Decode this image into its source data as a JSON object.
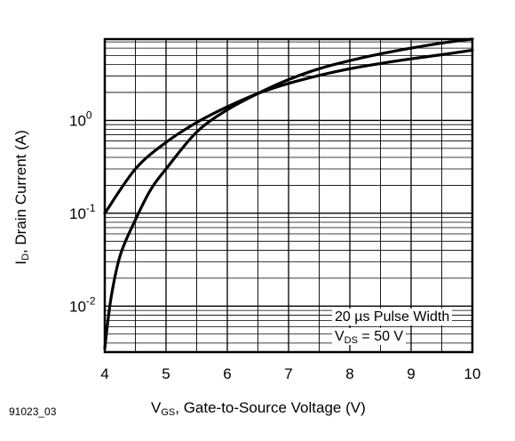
{
  "chart_data": {
    "type": "line",
    "figure_id": "91023_03",
    "xlabel": {
      "main": "V",
      "sub": "GS",
      "rest": ", Gate-to-Source Voltage (V)"
    },
    "ylabel": {
      "main": "I",
      "sub": "D",
      "rest": ", Drain Current (A)"
    },
    "xlim": [
      4,
      10
    ],
    "ylim": [
      0.0032,
      7.5
    ],
    "yscale": "log",
    "x_ticks": [
      "4",
      "5",
      "6",
      "7",
      "8",
      "9",
      "10"
    ],
    "y_ticks": [
      {
        "value": 1,
        "base": "10",
        "exp": "0"
      },
      {
        "value": 0.1,
        "base": "10",
        "exp": "-1"
      },
      {
        "value": 0.01,
        "base": "10",
        "exp": "-2"
      }
    ],
    "grid": true,
    "annotations": {
      "line1": "20 µs Pulse Width",
      "line2_main": "V",
      "line2_sub": "DS",
      "line2_rest": " = 50 V"
    },
    "series": [
      {
        "x": [
          4,
          4.5,
          5,
          5.5,
          6,
          6.5,
          7,
          7.5,
          8,
          8.5,
          9,
          9.5,
          10
        ],
        "y": [
          0.1,
          0.3,
          0.58,
          0.95,
          1.4,
          1.95,
          2.5,
          3.05,
          3.6,
          4.1,
          4.6,
          5.1,
          5.7
        ]
      },
      {
        "x": [
          4,
          4.1,
          4.25,
          4.5,
          4.75,
          5,
          5.5,
          6,
          6.5,
          7,
          7.5,
          8,
          8.5,
          9,
          9.5,
          10
        ],
        "y": [
          0.0035,
          0.012,
          0.035,
          0.085,
          0.18,
          0.3,
          0.75,
          1.3,
          1.95,
          2.75,
          3.6,
          4.4,
          5.2,
          6.0,
          6.8,
          7.5
        ]
      }
    ]
  }
}
